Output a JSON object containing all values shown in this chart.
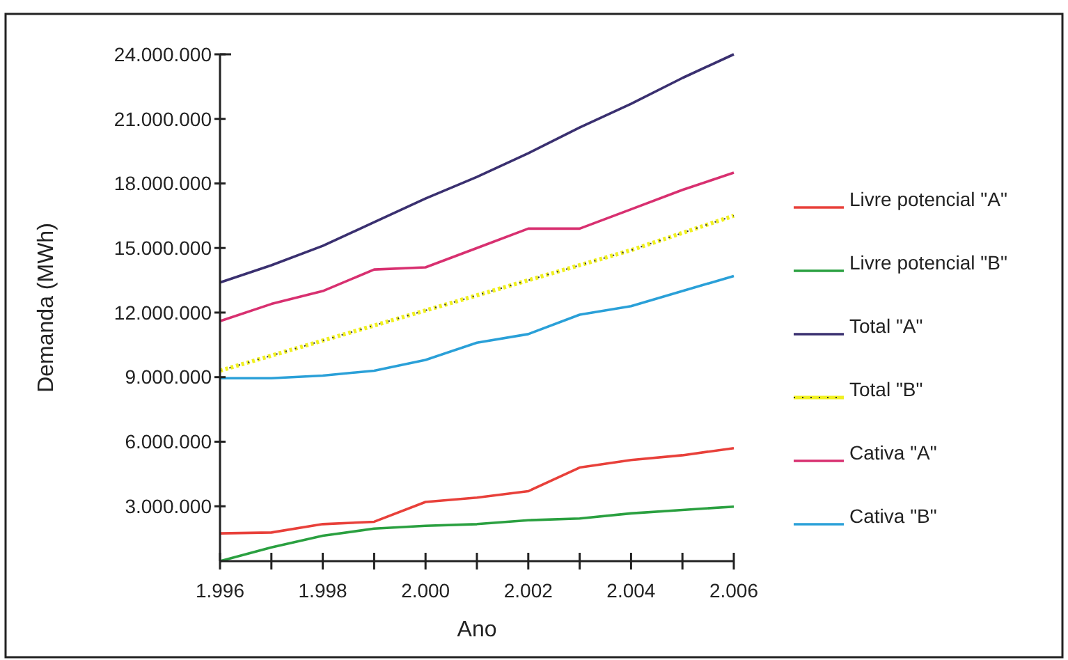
{
  "chart_data": {
    "type": "line",
    "xlabel": "Ano",
    "ylabel": "Demanda (MWh)",
    "legend": "right",
    "grid": false,
    "x": [
      1996,
      1997,
      1998,
      1999,
      2000,
      2001,
      2002,
      2003,
      2004,
      2005,
      2006
    ],
    "xlim": [
      1996,
      2006
    ],
    "xticks": [
      {
        "value": 1996,
        "label": "1.996"
      },
      {
        "value": 1997,
        "label": null
      },
      {
        "value": 1998,
        "label": "1.998"
      },
      {
        "value": 1999,
        "label": null
      },
      {
        "value": 2000,
        "label": "2.000"
      },
      {
        "value": 2001,
        "label": null
      },
      {
        "value": 2002,
        "label": "2.002"
      },
      {
        "value": 2003,
        "label": null
      },
      {
        "value": 2004,
        "label": "2.004"
      },
      {
        "value": 2005,
        "label": null
      },
      {
        "value": 2006,
        "label": "2.006"
      }
    ],
    "ylim": [
      450000,
      24000000
    ],
    "yticks": [
      {
        "value": 3000000,
        "label": "3.000.000"
      },
      {
        "value": 6000000,
        "label": "6.000.000"
      },
      {
        "value": 9000000,
        "label": "9.000.000"
      },
      {
        "value": 12000000,
        "label": "12.000.000"
      },
      {
        "value": 15000000,
        "label": "15.000.000"
      },
      {
        "value": 18000000,
        "label": "18.000.000"
      },
      {
        "value": 21000000,
        "label": "21.000.000"
      },
      {
        "value": 24000000,
        "label": "24.000.000"
      }
    ],
    "series": [
      {
        "name": "Livre potencial \"A\"",
        "color": "#e8403a",
        "line_style": "solid",
        "values": [
          1740000,
          1780000,
          2170000,
          2280000,
          3200000,
          3400000,
          3700000,
          4800000,
          5150000,
          5370000,
          5700000
        ]
      },
      {
        "name": "Livre potencial \"B\"",
        "color": "#2aa040",
        "line_style": "solid",
        "values": [
          450000,
          1090000,
          1630000,
          1960000,
          2090000,
          2170000,
          2350000,
          2430000,
          2670000,
          2830000,
          2980000
        ]
      },
      {
        "name": "Total \"A\"",
        "color": "#3a3070",
        "line_style": "solid",
        "values": [
          13400000,
          14200000,
          15100000,
          16200000,
          17300000,
          18300000,
          19400000,
          20600000,
          21700000,
          22900000,
          24000000
        ]
      },
      {
        "name": "Total \"B\"",
        "color": "#f0f020",
        "line_style": "dotted",
        "values": [
          9300000,
          10000000,
          10700000,
          11400000,
          12100000,
          12800000,
          13500000,
          14200000,
          14900000,
          15700000,
          16500000
        ]
      },
      {
        "name": "Cativa \"A\"",
        "color": "#d83070",
        "line_style": "solid",
        "values": [
          11600000,
          12400000,
          13000000,
          14000000,
          14100000,
          15000000,
          15900000,
          15900000,
          16800000,
          17700000,
          18500000
        ]
      },
      {
        "name": "Cativa \"B\"",
        "color": "#2aa0d8",
        "line_style": "solid",
        "values": [
          8950000,
          8950000,
          9070000,
          9300000,
          9800000,
          10600000,
          11000000,
          11900000,
          12300000,
          13000000,
          13700000
        ]
      }
    ]
  }
}
